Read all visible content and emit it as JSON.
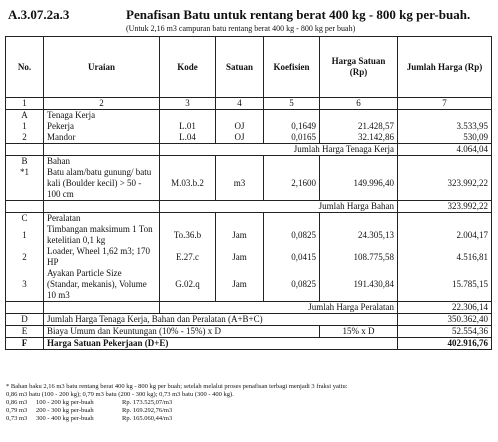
{
  "header": {
    "code": "A.3.07.2a.3",
    "title": "Penafisan Batu untuk rentang berat 400 kg - 800 kg per-buah.",
    "subtitle": "(Untuk 2,16 m3 campuran batu rentang berat 400 kg - 800 kg per buah)"
  },
  "columns": [
    "No.",
    "Uraian",
    "Kode",
    "Satuan",
    "Koefisien",
    "Harga Satuan (Rp)",
    "Jumlah Harga (Rp)"
  ],
  "column_index": [
    "1",
    "2",
    "3",
    "4",
    "5",
    "6",
    "7"
  ],
  "sections": {
    "A": {
      "letter": "A",
      "heading": "Tenaga Kerja",
      "rows": [
        {
          "no": "1",
          "desc": "Pekerja",
          "kode": "L.01",
          "satuan": "OJ",
          "koef": "0,1649",
          "harga": "21.428,57",
          "jumlah": "3.533,95"
        },
        {
          "no": "2",
          "desc": "Mandor",
          "kode": "L.04",
          "satuan": "OJ",
          "koef": "0,0165",
          "harga": "32.142,86",
          "jumlah": "530,09"
        }
      ],
      "sum_label": "Jumlah Harga Tenaga Kerja",
      "sum_value": "4.064,04"
    },
    "B": {
      "letter": "B",
      "heading": "Bahan",
      "rows": [
        {
          "no": "*1",
          "desc": "Batu alam/batu gunung/ batu kali (Boulder kecil) > 50 - 100 cm",
          "kode": "M.03.b.2",
          "satuan": "m3",
          "koef": "2,1600",
          "harga": "149.996,40",
          "jumlah": "323.992,22"
        }
      ],
      "sum_label": "Jumlah Harga Bahan",
      "sum_value": "323.992,22"
    },
    "C": {
      "letter": "C",
      "heading": "Peralatan",
      "rows": [
        {
          "no": "1",
          "desc": "Timbangan maksimum 1 Ton ketelitian 0,1 kg",
          "kode": "To.36.b",
          "satuan": "Jam",
          "koef": "0,0825",
          "harga": "24.305,13",
          "jumlah": "2.004,17"
        },
        {
          "no": "2",
          "desc": "Loader, Wheel 1,62 m3; 170 HP",
          "kode": "E.27.c",
          "satuan": "Jam",
          "koef": "0,0415",
          "harga": "108.775,58",
          "jumlah": "4.516,81"
        },
        {
          "no": "3",
          "desc": "Ayakan Particle Size (Standar, mekanis), Volume 10 m3",
          "kode": "G.02.q",
          "satuan": "Jam",
          "koef": "0,0825",
          "harga": "191.430,84",
          "jumlah": "15.785,15"
        }
      ],
      "sum_label": "Jumlah Harga Peralatan",
      "sum_value": "22.306,14"
    }
  },
  "totals": {
    "D": {
      "letter": "D",
      "label": "Jumlah Harga Tenaga Kerja, Bahan dan Peralatan (A+B+C)",
      "koef": "",
      "value": "350.362,40"
    },
    "E": {
      "letter": "E",
      "label": "Biaya Umum dan Keuntungan (10% - 15%) x D",
      "koef": "15% x D",
      "value": "52.554,36"
    },
    "F": {
      "letter": "F",
      "label": "Harga Satuan Pekerjaan (D+E)",
      "koef": "",
      "value": "402.916,76"
    }
  },
  "notes": {
    "intro": "* Bahan baku 2,16 m3 batu rentang berat 400 kg - 800 kg per buah; setelah melalui proses penafisan terbagi menjadi 3 fraksi yaitu:",
    "summary": "0,86 m3 batu (100 - 200 kg); 0,79 m3 batu (200 - 300 kg); 0,73 m3 batu (300 - 400 kg).",
    "fractions": [
      {
        "qty": "0,86 m3",
        "range": "100 - 200 kg per-buah",
        "price": "Rp. 173.525,07/m3"
      },
      {
        "qty": "0,79 m3",
        "range": "200 - 300 kg per-buah",
        "price": "Rp. 169.292,76/m3"
      },
      {
        "qty": "0,73 m3",
        "range": "300 - 400 kg per-buah",
        "price": "Rp. 165.060,44/m3"
      }
    ]
  }
}
